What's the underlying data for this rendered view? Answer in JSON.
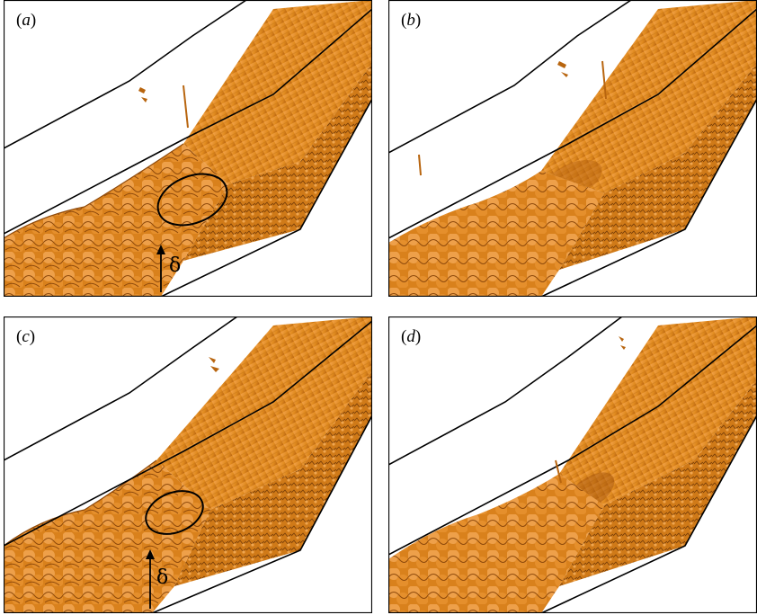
{
  "panels": [
    {
      "id": "a",
      "label": "a",
      "show_delta": true,
      "show_ellipse": true
    },
    {
      "id": "b",
      "label": "b",
      "show_delta": false,
      "show_ellipse": false
    },
    {
      "id": "c",
      "label": "c",
      "show_delta": true,
      "show_ellipse": true
    },
    {
      "id": "d",
      "label": "d",
      "show_delta": false,
      "show_ellipse": false
    }
  ],
  "annotations": {
    "delta_symbol": "δ"
  },
  "colors": {
    "surface": "#e08a1e",
    "surface_dark": "#a8570d",
    "surface_light": "#f4b060",
    "line": "#000000",
    "background": "#ffffff"
  }
}
